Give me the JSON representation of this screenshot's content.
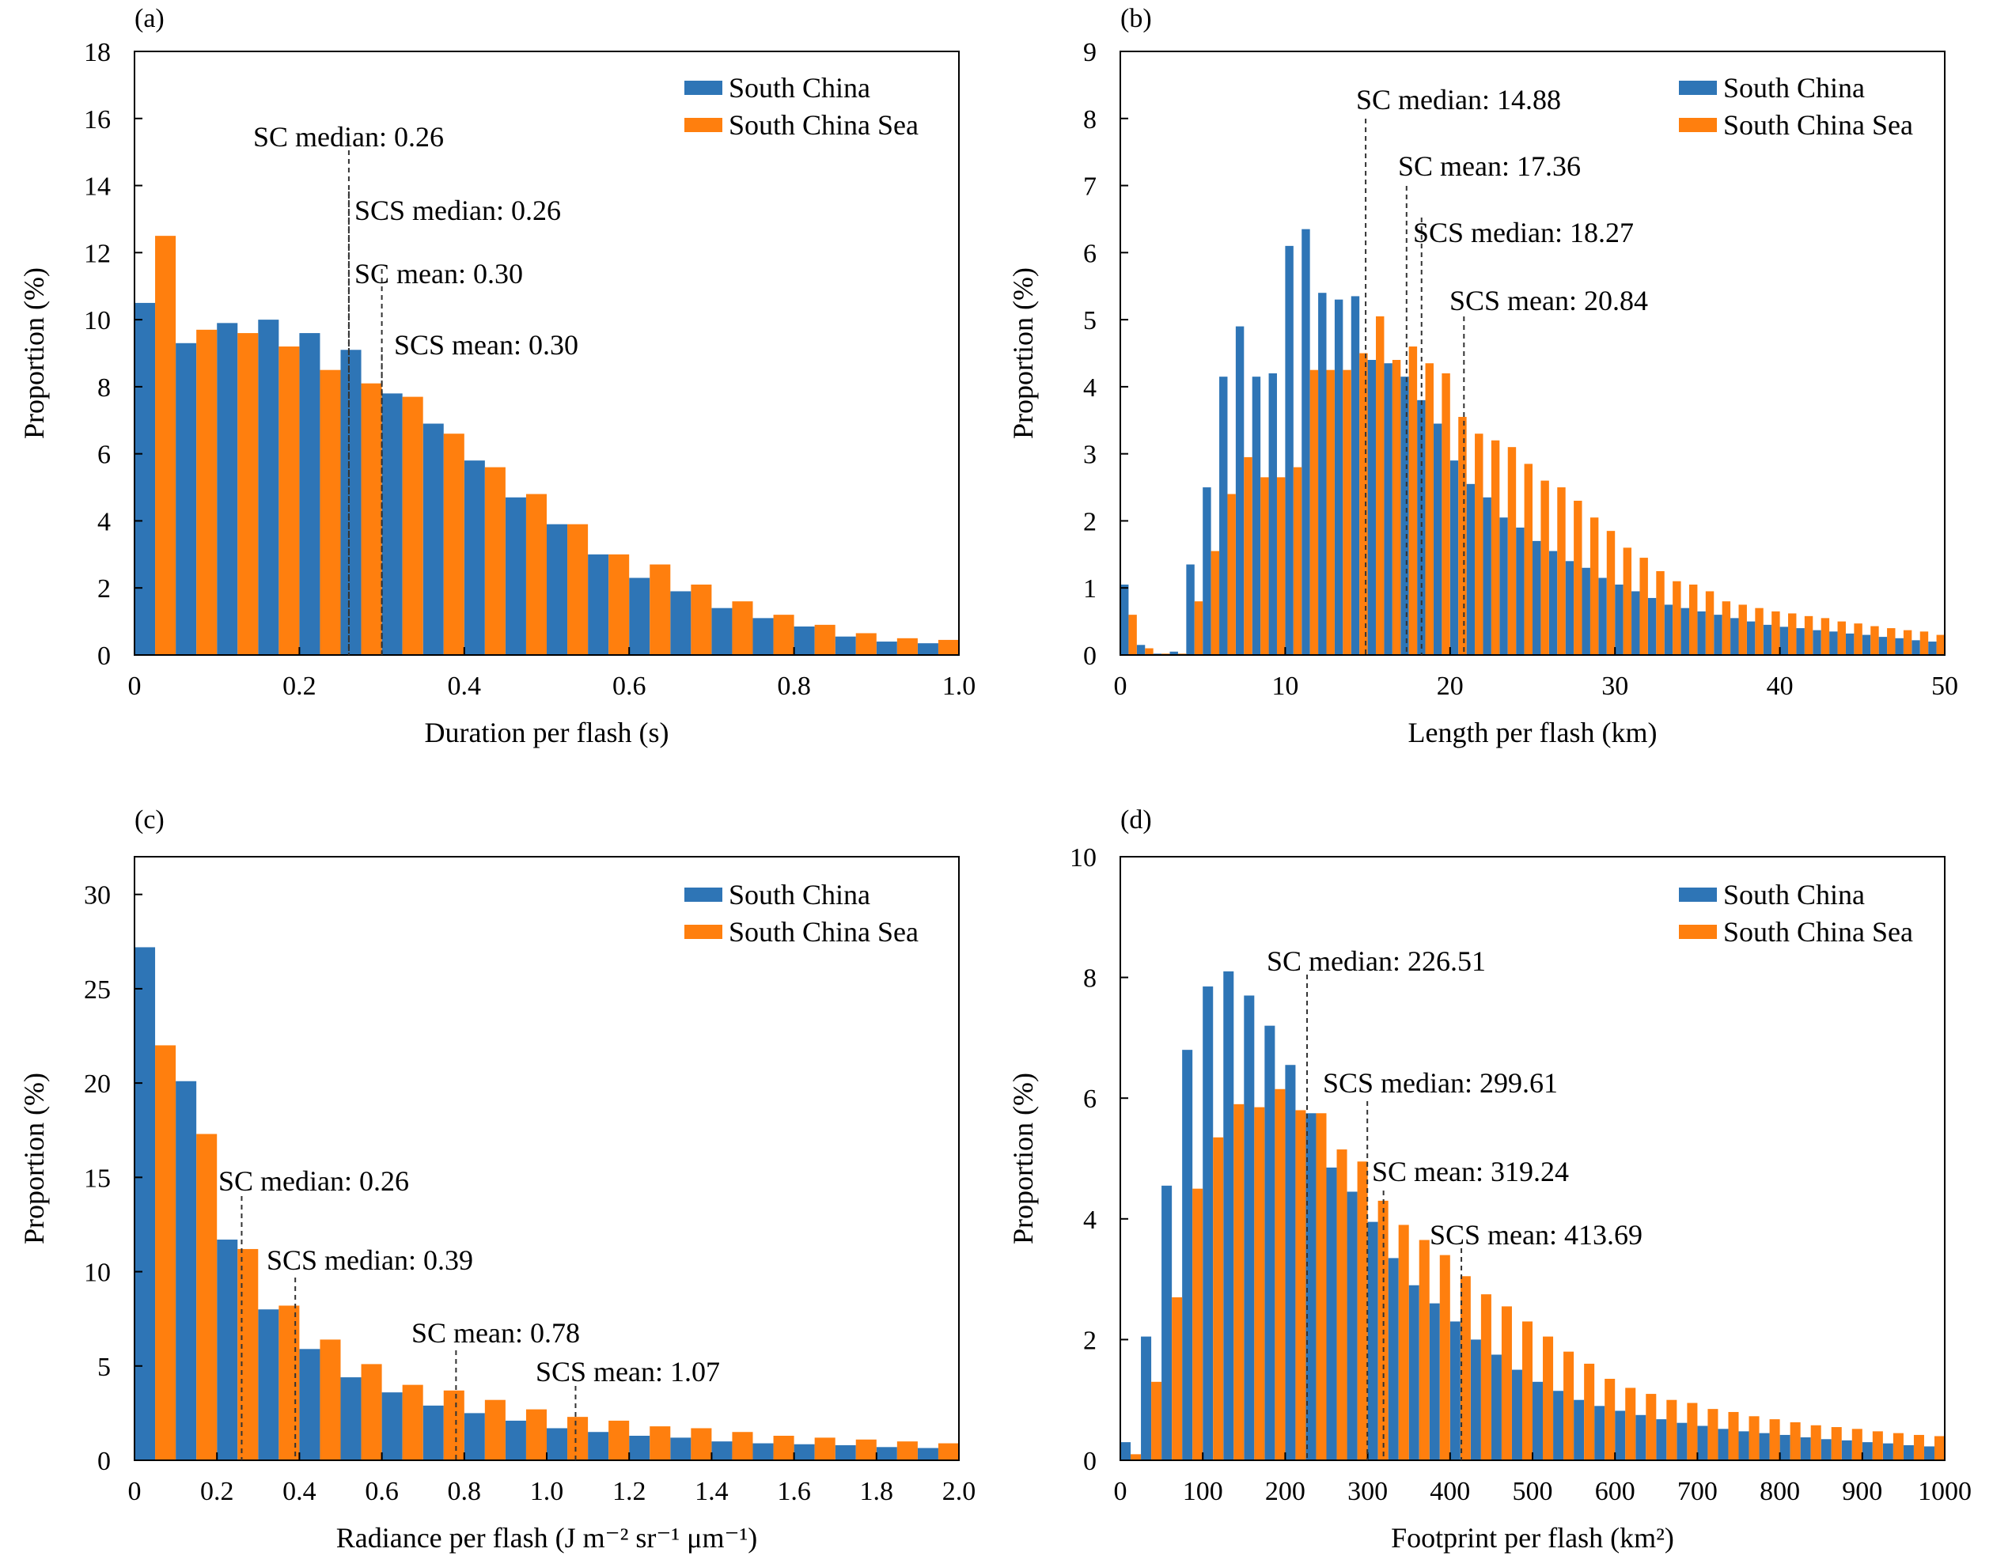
{
  "legend": {
    "south_china": "South China",
    "south_china_sea": "South China Sea"
  },
  "colors": {
    "south_china": "#2e75b6",
    "south_china_sea": "#ff7f0e",
    "frame": "#000000"
  },
  "chart_data": [
    {
      "type": "bar",
      "panel_label": "(a)",
      "xlabel": "Duration per flash (s)",
      "ylabel": "Proportion (%)",
      "xlim": [
        0,
        1.0
      ],
      "ylim": [
        0,
        18
      ],
      "xticks": [
        0,
        0.2,
        0.4,
        0.6,
        0.8,
        1.0
      ],
      "xtick_labels": [
        "0",
        "0.2",
        "0.4",
        "0.6",
        "0.8",
        "1.0"
      ],
      "yticks": [
        0,
        2,
        4,
        6,
        8,
        10,
        12,
        14,
        16,
        18
      ],
      "bin_width": 0.05,
      "x": [
        0,
        0.05,
        0.1,
        0.15,
        0.2,
        0.25,
        0.3,
        0.35,
        0.4,
        0.45,
        0.5,
        0.55,
        0.6,
        0.65,
        0.7,
        0.75,
        0.8,
        0.85,
        0.9,
        0.95
      ],
      "series": [
        {
          "name": "South China",
          "values": [
            10.5,
            9.3,
            9.9,
            10.0,
            9.6,
            9.1,
            7.8,
            6.9,
            5.8,
            4.7,
            3.9,
            3.0,
            2.3,
            1.9,
            1.4,
            1.1,
            0.85,
            0.55,
            0.4,
            0.35
          ]
        },
        {
          "name": "South China Sea",
          "values": [
            12.5,
            9.7,
            9.6,
            9.2,
            8.5,
            8.1,
            7.7,
            6.6,
            5.6,
            4.8,
            3.9,
            3.0,
            2.7,
            2.1,
            1.6,
            1.2,
            0.9,
            0.65,
            0.5,
            0.45
          ]
        }
      ],
      "annotations": [
        {
          "text": "SC median: 0.26",
          "x": 0.26
        },
        {
          "text": "SCS median: 0.26",
          "x": 0.26
        },
        {
          "text": "SC mean: 0.30",
          "x": 0.3
        },
        {
          "text": "SCS mean: 0.30",
          "x": 0.3
        }
      ],
      "legend_position": "top-right"
    },
    {
      "type": "bar",
      "panel_label": "(b)",
      "xlabel": "Length per flash (km)",
      "ylabel": "Proportion (%)",
      "xlim": [
        0,
        50
      ],
      "ylim": [
        0,
        9
      ],
      "xticks": [
        0,
        10,
        20,
        30,
        40,
        50
      ],
      "xtick_labels": [
        "0",
        "10",
        "20",
        "30",
        "40",
        "50"
      ],
      "yticks": [
        0,
        1,
        2,
        3,
        4,
        5,
        6,
        7,
        8,
        9
      ],
      "bin_width": 1,
      "x": [
        0,
        1,
        2,
        3,
        4,
        5,
        6,
        7,
        8,
        9,
        10,
        11,
        12,
        13,
        14,
        15,
        16,
        17,
        18,
        19,
        20,
        21,
        22,
        23,
        24,
        25,
        26,
        27,
        28,
        29,
        30,
        31,
        32,
        33,
        34,
        35,
        36,
        37,
        38,
        39,
        40,
        41,
        42,
        43,
        44,
        45,
        46,
        47,
        48,
        49
      ],
      "series": [
        {
          "name": "South China",
          "values": [
            1.05,
            0.15,
            0.02,
            0.05,
            1.35,
            2.5,
            4.15,
            4.9,
            4.15,
            4.2,
            6.1,
            6.35,
            5.4,
            5.3,
            5.35,
            4.4,
            4.35,
            4.15,
            3.8,
            3.45,
            2.9,
            2.55,
            2.35,
            2.05,
            1.9,
            1.7,
            1.55,
            1.4,
            1.3,
            1.15,
            1.05,
            0.95,
            0.85,
            0.75,
            0.7,
            0.65,
            0.6,
            0.55,
            0.5,
            0.45,
            0.42,
            0.4,
            0.37,
            0.35,
            0.32,
            0.3,
            0.27,
            0.25,
            0.22,
            0.2
          ]
        },
        {
          "name": "South China Sea",
          "values": [
            0.6,
            0.1,
            0.02,
            0.02,
            0.8,
            1.55,
            2.4,
            2.95,
            2.65,
            2.65,
            2.8,
            4.25,
            4.25,
            4.25,
            4.5,
            5.05,
            4.4,
            4.6,
            4.35,
            4.2,
            3.55,
            3.3,
            3.2,
            3.1,
            2.85,
            2.6,
            2.5,
            2.3,
            2.05,
            1.85,
            1.6,
            1.45,
            1.25,
            1.1,
            1.05,
            0.95,
            0.8,
            0.75,
            0.7,
            0.65,
            0.62,
            0.58,
            0.55,
            0.5,
            0.47,
            0.43,
            0.4,
            0.37,
            0.35,
            0.3
          ]
        }
      ],
      "annotations": [
        {
          "text": "SC median: 14.88",
          "x": 14.88
        },
        {
          "text": "SC mean: 17.36",
          "x": 17.36
        },
        {
          "text": "SCS median: 18.27",
          "x": 18.27
        },
        {
          "text": "SCS mean: 20.84",
          "x": 20.84
        }
      ],
      "legend_position": "top-right"
    },
    {
      "type": "bar",
      "panel_label": "(c)",
      "xlabel": "Radiance per flash (J m⁻² sr⁻¹ μm⁻¹)",
      "ylabel": "Proportion (%)",
      "xlim": [
        0,
        2.0
      ],
      "ylim": [
        0,
        32
      ],
      "xticks": [
        0,
        0.2,
        0.4,
        0.6,
        0.8,
        1.0,
        1.2,
        1.4,
        1.6,
        1.8,
        2.0
      ],
      "xtick_labels": [
        "0",
        "0.2",
        "0.4",
        "0.6",
        "0.8",
        "1.0",
        "1.2",
        "1.4",
        "1.6",
        "1.8",
        "2.0"
      ],
      "yticks": [
        0,
        5,
        10,
        15,
        20,
        25,
        30
      ],
      "bin_width": 0.1,
      "x": [
        0,
        0.1,
        0.2,
        0.3,
        0.4,
        0.5,
        0.6,
        0.7,
        0.8,
        0.9,
        1.0,
        1.1,
        1.2,
        1.3,
        1.4,
        1.5,
        1.6,
        1.7,
        1.8,
        1.9
      ],
      "series": [
        {
          "name": "South China",
          "values": [
            27.2,
            20.1,
            11.7,
            8.0,
            5.9,
            4.4,
            3.6,
            2.9,
            2.5,
            2.1,
            1.7,
            1.5,
            1.3,
            1.2,
            1.0,
            0.9,
            0.85,
            0.8,
            0.7,
            0.65
          ]
        },
        {
          "name": "South China Sea",
          "values": [
            22.0,
            17.3,
            11.2,
            8.2,
            6.4,
            5.1,
            4.0,
            3.7,
            3.2,
            2.7,
            2.3,
            2.1,
            1.8,
            1.7,
            1.5,
            1.3,
            1.2,
            1.1,
            1.0,
            0.9
          ]
        }
      ],
      "annotations": [
        {
          "text": "SC median: 0.26",
          "x": 0.26
        },
        {
          "text": "SCS median: 0.39",
          "x": 0.39
        },
        {
          "text": "SC mean: 0.78",
          "x": 0.78
        },
        {
          "text": "SCS mean: 1.07",
          "x": 1.07
        }
      ],
      "legend_position": "top-right"
    },
    {
      "type": "bar",
      "panel_label": "(d)",
      "xlabel": "Footprint per flash (km²)",
      "ylabel": "Proportion (%)",
      "xlim": [
        0,
        1000
      ],
      "ylim": [
        0,
        10
      ],
      "xticks": [
        0,
        100,
        200,
        300,
        400,
        500,
        600,
        700,
        800,
        900,
        1000
      ],
      "xtick_labels": [
        "0",
        "100",
        "200",
        "300",
        "400",
        "500",
        "600",
        "700",
        "800",
        "900",
        "1000"
      ],
      "yticks": [
        0,
        2,
        4,
        6,
        8,
        10
      ],
      "bin_width": 25,
      "x": [
        0,
        25,
        50,
        75,
        100,
        125,
        150,
        175,
        200,
        225,
        250,
        275,
        300,
        325,
        350,
        375,
        400,
        425,
        450,
        475,
        500,
        525,
        550,
        575,
        600,
        625,
        650,
        675,
        700,
        725,
        750,
        775,
        800,
        825,
        850,
        875,
        900,
        925,
        950,
        975
      ],
      "series": [
        {
          "name": "South China",
          "values": [
            0.3,
            2.05,
            4.55,
            6.8,
            7.85,
            8.1,
            7.7,
            7.2,
            6.55,
            5.75,
            4.85,
            4.45,
            3.95,
            3.35,
            2.9,
            2.6,
            2.3,
            2.0,
            1.75,
            1.5,
            1.3,
            1.15,
            1.0,
            0.9,
            0.82,
            0.75,
            0.68,
            0.62,
            0.57,
            0.52,
            0.48,
            0.45,
            0.42,
            0.38,
            0.35,
            0.33,
            0.3,
            0.28,
            0.25,
            0.23
          ]
        },
        {
          "name": "South China Sea",
          "values": [
            0.1,
            1.3,
            2.7,
            4.5,
            5.35,
            5.9,
            5.85,
            6.15,
            5.8,
            5.75,
            5.15,
            4.95,
            4.3,
            3.9,
            3.65,
            3.4,
            3.05,
            2.75,
            2.55,
            2.3,
            2.05,
            1.8,
            1.6,
            1.35,
            1.2,
            1.1,
            1.0,
            0.95,
            0.85,
            0.8,
            0.73,
            0.68,
            0.63,
            0.58,
            0.55,
            0.52,
            0.48,
            0.45,
            0.42,
            0.4
          ]
        }
      ],
      "annotations": [
        {
          "text": "SC median: 226.51",
          "x": 226.51
        },
        {
          "text": "SCS median: 299.61",
          "x": 299.61
        },
        {
          "text": "SC mean: 319.24",
          "x": 319.24
        },
        {
          "text": "SCS mean: 413.69",
          "x": 413.69
        }
      ],
      "legend_position": "top-right"
    }
  ]
}
